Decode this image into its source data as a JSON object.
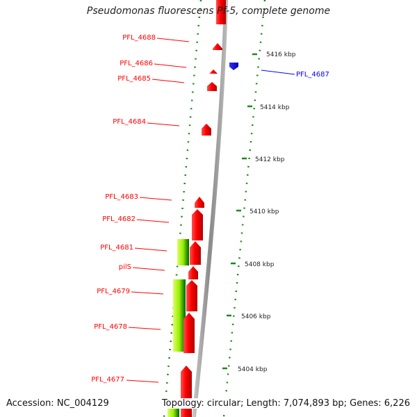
{
  "title": "Pseudomonas fluorescens Pf-5, complete genome",
  "accession": "Accession: NC_004129",
  "topology": "Topology: circular; Length: 7,074,893 bp; Genes: 6,226",
  "colors": {
    "forward_gene": "#ff0000",
    "reverse_gene": "#0000ff",
    "backbone": "#999999",
    "ticks": "#008000",
    "green_bars": "#99ee00"
  },
  "scale_labels": [
    "5416 kbp",
    "5414 kbp",
    "5412 kbp",
    "5410 kbp",
    "5408 kbp",
    "5406 kbp",
    "5404 kbp"
  ],
  "genes": [
    {
      "label": "PFL_4688",
      "strand": "forward"
    },
    {
      "label": "PFL_4686",
      "strand": "forward"
    },
    {
      "label": "PFL_4685",
      "strand": "forward"
    },
    {
      "label": "PFL_4684",
      "strand": "forward"
    },
    {
      "label": "PFL_4683",
      "strand": "forward"
    },
    {
      "label": "PFL_4682",
      "strand": "forward"
    },
    {
      "label": "PFL_4681",
      "strand": "forward"
    },
    {
      "label": "pilS",
      "strand": "forward"
    },
    {
      "label": "PFL_4679",
      "strand": "forward"
    },
    {
      "label": "PFL_4678",
      "strand": "forward"
    },
    {
      "label": "PFL_4677",
      "strand": "forward"
    },
    {
      "label": "PFL_4687",
      "strand": "reverse"
    }
  ]
}
